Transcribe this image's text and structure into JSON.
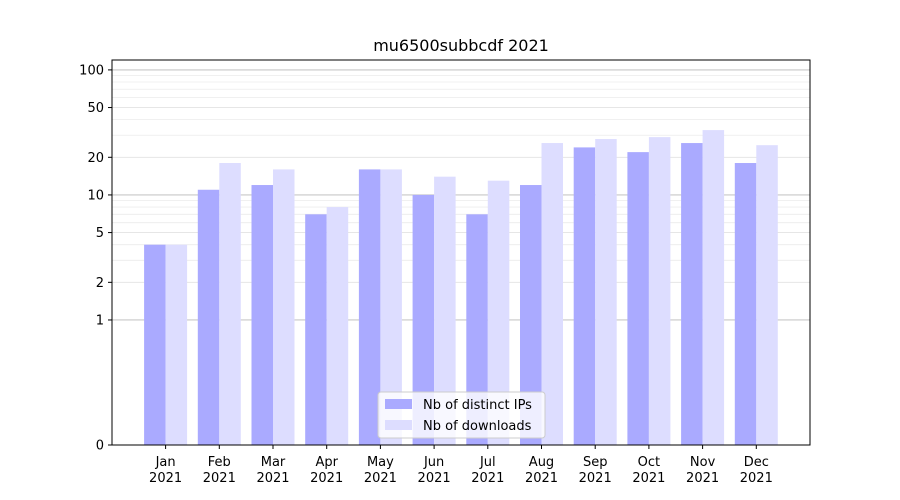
{
  "chart_data": {
    "type": "bar",
    "title": "mu6500subbcdf 2021",
    "xlabel": "",
    "ylabel": "",
    "categories": [
      "Jan\n2021",
      "Feb\n2021",
      "Mar\n2021",
      "Apr\n2021",
      "May\n2021",
      "Jun\n2021",
      "Jul\n2021",
      "Aug\n2021",
      "Sep\n2021",
      "Oct\n2021",
      "Nov\n2021",
      "Dec\n2021"
    ],
    "series": [
      {
        "name": "Nb of distinct IPs",
        "color": "#aaaaff",
        "values": [
          4,
          11,
          12,
          7,
          16,
          10,
          7,
          12,
          24,
          22,
          26,
          18
        ]
      },
      {
        "name": "Nb of downloads",
        "color": "#ddddff",
        "values": [
          4,
          18,
          16,
          8,
          16,
          14,
          13,
          26,
          28,
          29,
          33,
          25
        ]
      }
    ],
    "y_scale": "symlog",
    "ylim": [
      0,
      120
    ],
    "yticks": [
      0,
      1,
      2,
      5,
      10,
      20,
      50,
      100
    ],
    "grid": "horizontal",
    "legend": "bottom-center"
  }
}
